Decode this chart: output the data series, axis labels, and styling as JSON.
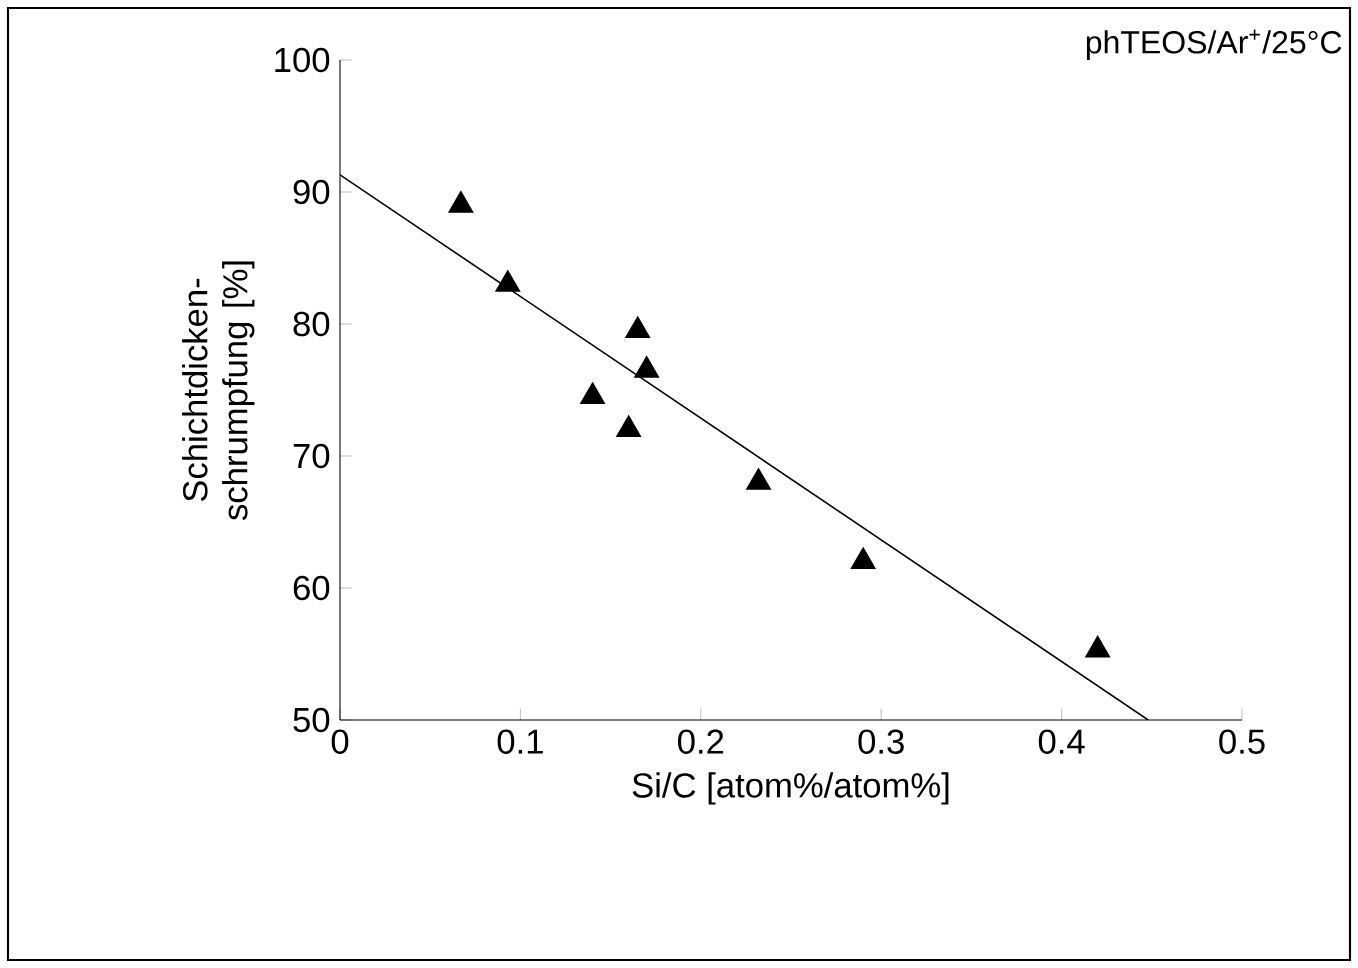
{
  "chart_data": {
    "type": "scatter",
    "xlabel": "Si/C [atom%/atom%]",
    "ylabel": "Schichtdicken- schrumpfung [%]",
    "annotations": [
      "phTEOS/Ar$^{+}$/25°C"
    ],
    "series": [
      {
        "color": "#000000",
        "marker": "triangle",
        "x": [
          0.067,
          0.093,
          0.14,
          0.16,
          0.165,
          0.17,
          0.232,
          0.29,
          0.42
        ],
        "values": [
          89,
          83,
          74.5,
          72,
          79.5,
          76.5,
          68,
          62,
          55.3
        ]
      },
      {
        "type": "line",
        "color": "#000000",
        "marker": "none",
        "x": [
          0,
          0.448
        ],
        "values": [
          91.3,
          50
        ]
      }
    ],
    "xlim": [
      0,
      0.5
    ],
    "ylim": [
      50,
      100
    ],
    "xticks": [
      0,
      0.1,
      0.2,
      0.3,
      0.4,
      0.5
    ],
    "yticks": [
      50,
      60,
      70,
      80,
      90,
      100
    ],
    "grid": false
  }
}
